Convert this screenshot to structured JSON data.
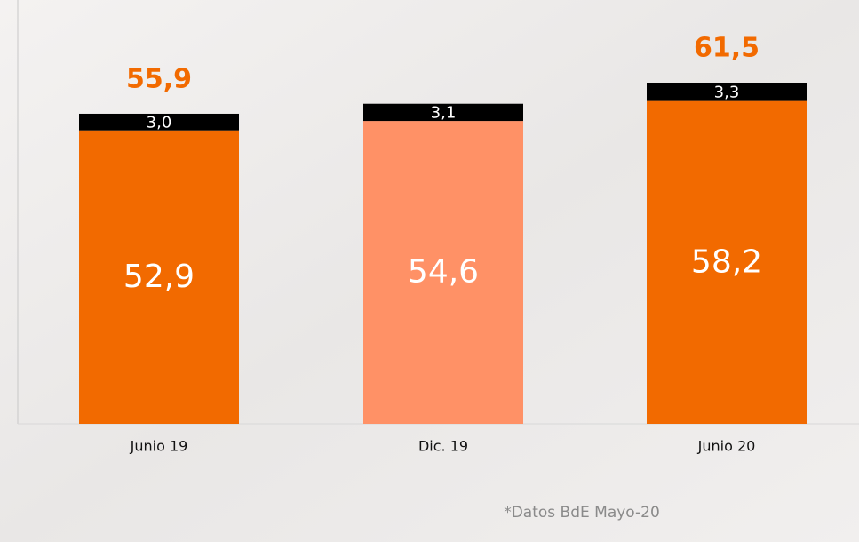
{
  "chart_data": {
    "type": "stacked_bar",
    "categories": [
      "Junio 19",
      "Dic. 19",
      "Junio 20"
    ],
    "series": [
      {
        "colors": [
          "#f26a00",
          "#ff9166",
          "#f26a00"
        ],
        "values": [
          52.9,
          54.6,
          58.2
        ],
        "value_labels": [
          "52,9",
          "54,6",
          "58,2"
        ]
      },
      {
        "color": "#000000",
        "values": [
          3.0,
          3.1,
          3.3
        ],
        "value_labels": [
          "3,0",
          "3,1",
          "3,3"
        ]
      }
    ],
    "totals": {
      "color": "#f26a00",
      "values": [
        55.9,
        null,
        61.5
      ],
      "value_labels": [
        "55,9",
        null,
        "61,5"
      ]
    },
    "footnote": "*Datos BdE Mayo-20"
  }
}
